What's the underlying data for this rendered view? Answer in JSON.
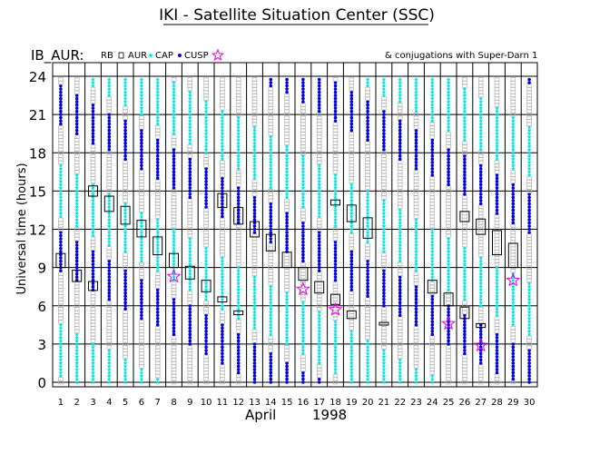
{
  "chart_data": {
    "type": "scatter",
    "title": "IKI - Satellite Situation Center (SSC)",
    "label_left": "IB_AUR:",
    "legend": [
      {
        "label": "RB",
        "symbol": "none"
      },
      {
        "label": "AUR",
        "symbol": "square"
      },
      {
        "label": "CAP",
        "symbol": "star"
      },
      {
        "label": "CUSP",
        "symbol": "dot"
      },
      {
        "label": "",
        "symbol": "open-star"
      }
    ],
    "conjugations_label": "& conjugations with Super-Darn 1",
    "ylabel": "Universal time (hours)",
    "xlabel_month": "April",
    "xlabel_year": "1998",
    "ylim": [
      0,
      24
    ],
    "yticks": [
      "0",
      "3",
      "6",
      "9",
      "12",
      "15",
      "18",
      "21",
      "24"
    ],
    "xticks": [
      "1",
      "2",
      "3",
      "4",
      "5",
      "6",
      "7",
      "8",
      "9",
      "10",
      "11",
      "12",
      "13",
      "14",
      "15",
      "16",
      "17",
      "18",
      "19",
      "20",
      "21",
      "22",
      "23",
      "24",
      "25",
      "26",
      "27",
      "28",
      "29",
      "30"
    ],
    "colors": {
      "aur": "#b4b4b4",
      "cap": "#00e0e0",
      "cusp": "#0000e0",
      "conj": "#e000e0",
      "frame": "#000000"
    },
    "rb_boxes": [
      {
        "day": 1,
        "ut_start": 9.0,
        "ut_end": 10.1
      },
      {
        "day": 2,
        "ut_start": 7.9,
        "ut_end": 8.8
      },
      {
        "day": 3,
        "ut_start": 7.2,
        "ut_end": 7.9
      },
      {
        "day": 3,
        "ut_start": 14.6,
        "ut_end": 15.4
      },
      {
        "day": 4,
        "ut_start": 13.4,
        "ut_end": 14.6
      },
      {
        "day": 5,
        "ut_start": 12.4,
        "ut_end": 13.8
      },
      {
        "day": 6,
        "ut_start": 11.4,
        "ut_end": 12.7
      },
      {
        "day": 7,
        "ut_start": 10.0,
        "ut_end": 11.4
      },
      {
        "day": 8,
        "ut_start": 9.0,
        "ut_end": 10.1
      },
      {
        "day": 9,
        "ut_start": 8.1,
        "ut_end": 9.1
      },
      {
        "day": 10,
        "ut_start": 7.1,
        "ut_end": 8.0
      },
      {
        "day": 11,
        "ut_start": 6.3,
        "ut_end": 6.7
      },
      {
        "day": 11,
        "ut_start": 13.7,
        "ut_end": 14.8
      },
      {
        "day": 12,
        "ut_start": 12.4,
        "ut_end": 13.7
      },
      {
        "day": 12,
        "ut_start": 5.3,
        "ut_end": 5.6
      },
      {
        "day": 13,
        "ut_start": 11.4,
        "ut_end": 12.6
      },
      {
        "day": 14,
        "ut_start": 10.3,
        "ut_end": 11.6
      },
      {
        "day": 15,
        "ut_start": 9.0,
        "ut_end": 10.2
      },
      {
        "day": 16,
        "ut_start": 8.0,
        "ut_end": 9.0
      },
      {
        "day": 17,
        "ut_start": 7.0,
        "ut_end": 7.9
      },
      {
        "day": 18,
        "ut_start": 6.1,
        "ut_end": 6.9
      },
      {
        "day": 18,
        "ut_start": 13.9,
        "ut_end": 14.3
      },
      {
        "day": 19,
        "ut_start": 5.0,
        "ut_end": 5.6
      },
      {
        "day": 19,
        "ut_start": 12.6,
        "ut_end": 13.9
      },
      {
        "day": 20,
        "ut_start": 11.3,
        "ut_end": 12.9
      },
      {
        "day": 21,
        "ut_start": 4.5,
        "ut_end": 4.7
      },
      {
        "day": 24,
        "ut_start": 7.0,
        "ut_end": 8.0
      },
      {
        "day": 25,
        "ut_start": 6.0,
        "ut_end": 7.0
      },
      {
        "day": 26,
        "ut_start": 5.0,
        "ut_end": 5.9
      },
      {
        "day": 26,
        "ut_start": 12.6,
        "ut_end": 13.4
      },
      {
        "day": 27,
        "ut_start": 4.3,
        "ut_end": 4.6
      },
      {
        "day": 27,
        "ut_start": 11.6,
        "ut_end": 12.8
      },
      {
        "day": 28,
        "ut_start": 10.0,
        "ut_end": 11.9
      },
      {
        "day": 29,
        "ut_start": 9.0,
        "ut_end": 10.9
      }
    ],
    "conjugations": [
      {
        "day": 8,
        "ut": 8.3
      },
      {
        "day": 16,
        "ut": 7.3
      },
      {
        "day": 18,
        "ut": 5.7
      },
      {
        "day": 25,
        "ut": 4.6
      },
      {
        "day": 27,
        "ut": 2.9
      },
      {
        "day": 29,
        "ut": 8.0
      }
    ]
  }
}
